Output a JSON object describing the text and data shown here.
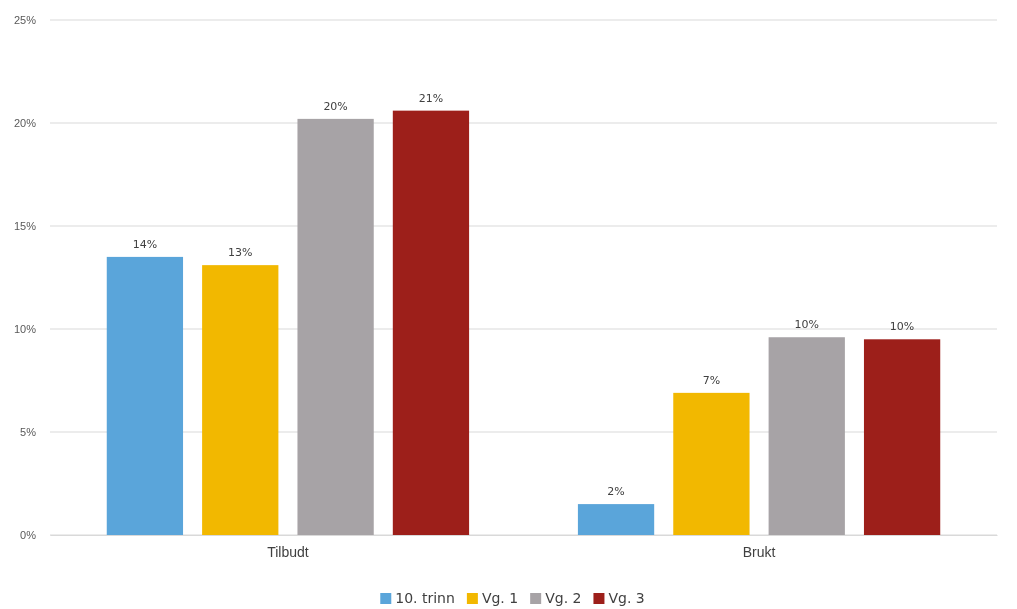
{
  "chart_data": {
    "type": "bar",
    "categories": [
      "Tilbudt",
      "Brukt"
    ],
    "series": [
      {
        "name": "10. trinn",
        "color": "#5aa5da",
        "values": [
          13.5,
          1.5
        ],
        "value_labels": [
          "14%",
          "2%"
        ]
      },
      {
        "name": "Vg. 1",
        "color": "#f2b800",
        "values": [
          13.1,
          6.9
        ],
        "value_labels": [
          "13%",
          "7%"
        ]
      },
      {
        "name": "Vg. 2",
        "color": "#a7a3a6",
        "values": [
          20.2,
          9.6
        ],
        "value_labels": [
          "20%",
          "10%"
        ]
      },
      {
        "name": "Vg. 3",
        "color": "#9d1f1a",
        "values": [
          20.6,
          9.5
        ],
        "value_labels": [
          "21%",
          "10%"
        ]
      }
    ],
    "ylim": [
      0,
      25
    ],
    "yticks": [
      {
        "value": 0,
        "label": "0%"
      },
      {
        "value": 5,
        "label": "5%"
      },
      {
        "value": 10,
        "label": "10%"
      },
      {
        "value": 15,
        "label": "15%"
      },
      {
        "value": 20,
        "label": "20%"
      },
      {
        "value": 25,
        "label": "25%"
      }
    ],
    "grid": "y",
    "legend": "bottom"
  }
}
